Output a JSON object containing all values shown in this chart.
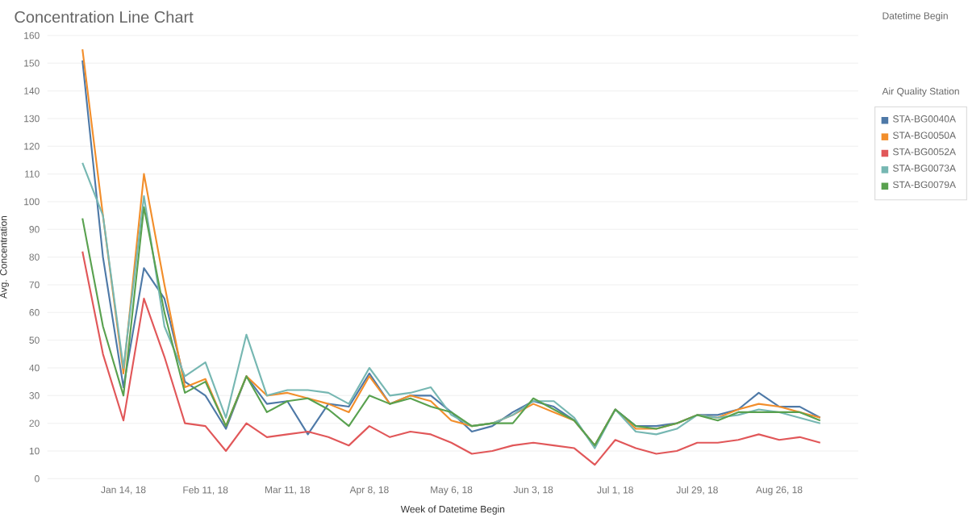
{
  "chart_data": {
    "type": "line",
    "title": "Concentration Line Chart",
    "xlabel": "Week of Datetime Begin",
    "ylabel": "Avg. Concentration",
    "legend_title": "Air Quality Station",
    "annotations": [
      "Datetime Begin"
    ],
    "x": [
      "2017-12-31",
      "2018-01-07",
      "2018-01-14",
      "2018-01-21",
      "2018-01-28",
      "2018-02-04",
      "2018-02-11",
      "2018-02-18",
      "2018-02-25",
      "2018-03-04",
      "2018-03-11",
      "2018-03-18",
      "2018-03-25",
      "2018-04-01",
      "2018-04-08",
      "2018-04-15",
      "2018-04-22",
      "2018-04-29",
      "2018-05-06",
      "2018-05-13",
      "2018-05-20",
      "2018-05-27",
      "2018-06-03",
      "2018-06-10",
      "2018-06-17",
      "2018-06-24",
      "2018-07-01",
      "2018-07-08",
      "2018-07-15",
      "2018-07-22",
      "2018-07-29",
      "2018-08-05",
      "2018-08-12",
      "2018-08-19",
      "2018-08-26",
      "2018-09-02",
      "2018-09-09"
    ],
    "series": [
      {
        "name": "STA-BG0040A",
        "color": "#4e79a7",
        "values": [
          151,
          80,
          33,
          76,
          65,
          35,
          30,
          18,
          37,
          27,
          28,
          16,
          27,
          26,
          38,
          27,
          30,
          30,
          24,
          17,
          19,
          24,
          28,
          26,
          21,
          12,
          25,
          19,
          19,
          20,
          23,
          23,
          25,
          31,
          26,
          26,
          22
        ]
      },
      {
        "name": "STA-BG0050A",
        "color": "#f28e2b",
        "values": [
          155,
          95,
          38,
          110,
          70,
          33,
          36,
          19,
          37,
          30,
          31,
          29,
          27,
          24,
          37,
          27,
          30,
          28,
          21,
          19,
          20,
          23,
          27,
          24,
          21,
          12,
          25,
          18,
          18,
          20,
          23,
          22,
          25,
          27,
          26,
          24,
          22
        ]
      },
      {
        "name": "STA-BG0052A",
        "color": "#e15759",
        "values": [
          82,
          45,
          21,
          65,
          44,
          20,
          19,
          10,
          20,
          15,
          16,
          17,
          15,
          12,
          19,
          15,
          17,
          16,
          13,
          9,
          10,
          12,
          13,
          12,
          11,
          5,
          14,
          11,
          9,
          10,
          13,
          13,
          14,
          16,
          14,
          15,
          13
        ]
      },
      {
        "name": "STA-BG0073A",
        "color": "#76b7b2",
        "values": [
          114,
          95,
          40,
          102,
          55,
          37,
          42,
          22,
          52,
          30,
          32,
          32,
          31,
          27,
          40,
          30,
          31,
          33,
          23,
          19,
          20,
          23,
          28,
          28,
          22,
          11,
          25,
          17,
          16,
          18,
          23,
          22,
          23,
          25,
          24,
          22,
          20
        ]
      },
      {
        "name": "STA-BG0079A",
        "color": "#59a14f",
        "values": [
          94,
          55,
          30,
          98,
          60,
          31,
          35,
          19,
          37,
          24,
          28,
          29,
          25,
          19,
          30,
          27,
          29,
          26,
          24,
          19,
          20,
          20,
          29,
          25,
          21,
          12,
          25,
          19,
          18,
          20,
          23,
          21,
          24,
          24,
          24,
          24,
          21
        ]
      }
    ],
    "xlim": [
      "2017-12-19",
      "2018-09-22"
    ],
    "xticks": [
      {
        "value": "2018-01-14",
        "label": "Jan 14, 18"
      },
      {
        "value": "2018-02-11",
        "label": "Feb 11, 18"
      },
      {
        "value": "2018-03-11",
        "label": "Mar 11, 18"
      },
      {
        "value": "2018-04-08",
        "label": "Apr 8, 18"
      },
      {
        "value": "2018-05-06",
        "label": "May 6, 18"
      },
      {
        "value": "2018-06-03",
        "label": "Jun 3, 18"
      },
      {
        "value": "2018-07-01",
        "label": "Jul 1, 18"
      },
      {
        "value": "2018-07-29",
        "label": "Jul 29, 18"
      },
      {
        "value": "2018-08-26",
        "label": "Aug 26, 18"
      }
    ],
    "ylim": [
      0,
      160
    ],
    "yticks": [
      0,
      10,
      20,
      30,
      40,
      50,
      60,
      70,
      80,
      90,
      100,
      110,
      120,
      130,
      140,
      150,
      160
    ],
    "grid": "y",
    "legend": "right",
    "marker": "none",
    "line_style": "solid"
  }
}
